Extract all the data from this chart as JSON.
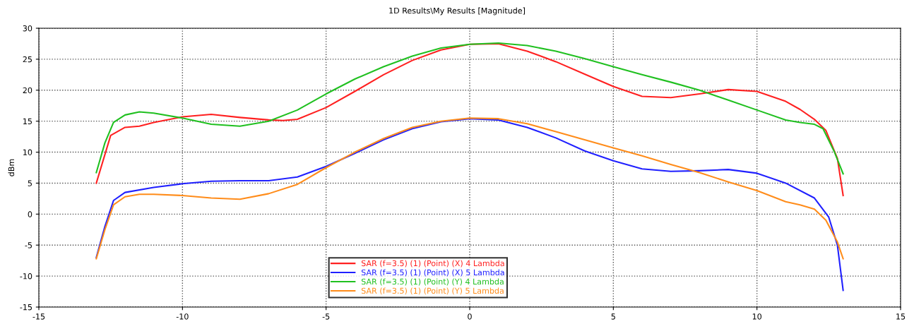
{
  "chart_data": {
    "type": "line",
    "title": "1D Results\\My Results [Magnitude]",
    "ylabel": "dBm",
    "xlim": [
      -15,
      15
    ],
    "xticks": [
      -15,
      -10,
      -5,
      0,
      5,
      10,
      15
    ],
    "ylim": [
      -15,
      30
    ],
    "yticks": [
      -15,
      -10,
      -5,
      0,
      5,
      10,
      15,
      20,
      25,
      30
    ],
    "grid": true,
    "legend": "bottom",
    "line_style": "solid",
    "marker": "none",
    "series": [
      {
        "name": "SAR (f=3.5) (1) (Point) (X) 4 Lambda",
        "color": "#ff2020",
        "x": [
          -13,
          -12.5,
          -12,
          -11.5,
          -11,
          -10,
          -9,
          -8,
          -7,
          -6.5,
          -6,
          -5,
          -4,
          -3,
          -2,
          -1,
          0,
          1,
          2,
          3,
          4,
          5,
          6,
          7,
          8,
          9,
          10,
          11,
          11.5,
          12,
          12.4,
          12.8,
          13
        ],
        "values": [
          5,
          12.7,
          14,
          14.2,
          14.8,
          15.7,
          16.1,
          15.6,
          15.2,
          15.1,
          15.3,
          17.2,
          19.8,
          22.5,
          24.8,
          26.5,
          27.4,
          27.5,
          26.3,
          24.6,
          22.6,
          20.6,
          19.0,
          18.8,
          19.4,
          20.1,
          19.8,
          18.2,
          16.9,
          15.3,
          13.5,
          9,
          3
        ]
      },
      {
        "name": "SAR (f=3.5) (1) (Point) (X) 5 Lambda",
        "color": "#2020ff",
        "x": [
          -13,
          -12.7,
          -12.4,
          -12,
          -11,
          -10,
          -9,
          -8,
          -7,
          -6,
          -5,
          -4,
          -3,
          -2,
          -1,
          0,
          1,
          2,
          3,
          4,
          5,
          6,
          7,
          8,
          9,
          10,
          11,
          12,
          12.5,
          12.8,
          13
        ],
        "values": [
          -7,
          -2,
          2.2,
          3.5,
          4.3,
          4.9,
          5.3,
          5.4,
          5.4,
          6.0,
          7.7,
          9.8,
          12.0,
          13.8,
          14.9,
          15.4,
          15.2,
          14.0,
          12.3,
          10.2,
          8.6,
          7.3,
          6.9,
          7.0,
          7.2,
          6.6,
          5.0,
          2.6,
          -0.5,
          -5,
          -12.3
        ]
      },
      {
        "name": "SAR (f=3.5) (1) (Point) (Y) 4 Lambda",
        "color": "#20c020",
        "x": [
          -13,
          -12.7,
          -12.4,
          -12,
          -11.5,
          -11,
          -10,
          -9,
          -8,
          -7,
          -6,
          -5,
          -4,
          -3,
          -2,
          -1,
          0,
          1,
          2,
          3,
          4,
          5,
          6,
          7,
          8,
          9,
          10,
          11,
          11.5,
          12,
          12.3,
          12.7,
          13
        ],
        "values": [
          6.7,
          11.5,
          14.8,
          16.0,
          16.5,
          16.3,
          15.5,
          14.5,
          14.2,
          15.0,
          16.8,
          19.4,
          21.8,
          23.8,
          25.5,
          26.8,
          27.4,
          27.6,
          27.2,
          26.3,
          25.1,
          23.8,
          22.5,
          21.3,
          20.0,
          18.4,
          16.8,
          15.2,
          14.8,
          14.5,
          13.8,
          10,
          6.5
        ]
      },
      {
        "name": "SAR (f=3.5) (1) (Point) (Y) 5 Lambda",
        "color": "#ff8c1a",
        "x": [
          -13,
          -12.7,
          -12.4,
          -12,
          -11.5,
          -11,
          -10,
          -9,
          -8,
          -7,
          -6,
          -5,
          -4,
          -3,
          -2,
          -1,
          0,
          1,
          2,
          3,
          4,
          5,
          6,
          7,
          8,
          9,
          10,
          11,
          11.5,
          12,
          12.4,
          12.8,
          13
        ],
        "values": [
          -7.2,
          -2.5,
          1.5,
          2.8,
          3.2,
          3.2,
          3.0,
          2.6,
          2.4,
          3.3,
          4.8,
          7.5,
          10.0,
          12.2,
          14.0,
          15.0,
          15.5,
          15.4,
          14.6,
          13.3,
          12.0,
          10.7,
          9.4,
          8.0,
          6.7,
          5.2,
          3.8,
          2.0,
          1.5,
          0.8,
          -1,
          -4.5,
          -7.2
        ]
      }
    ]
  }
}
